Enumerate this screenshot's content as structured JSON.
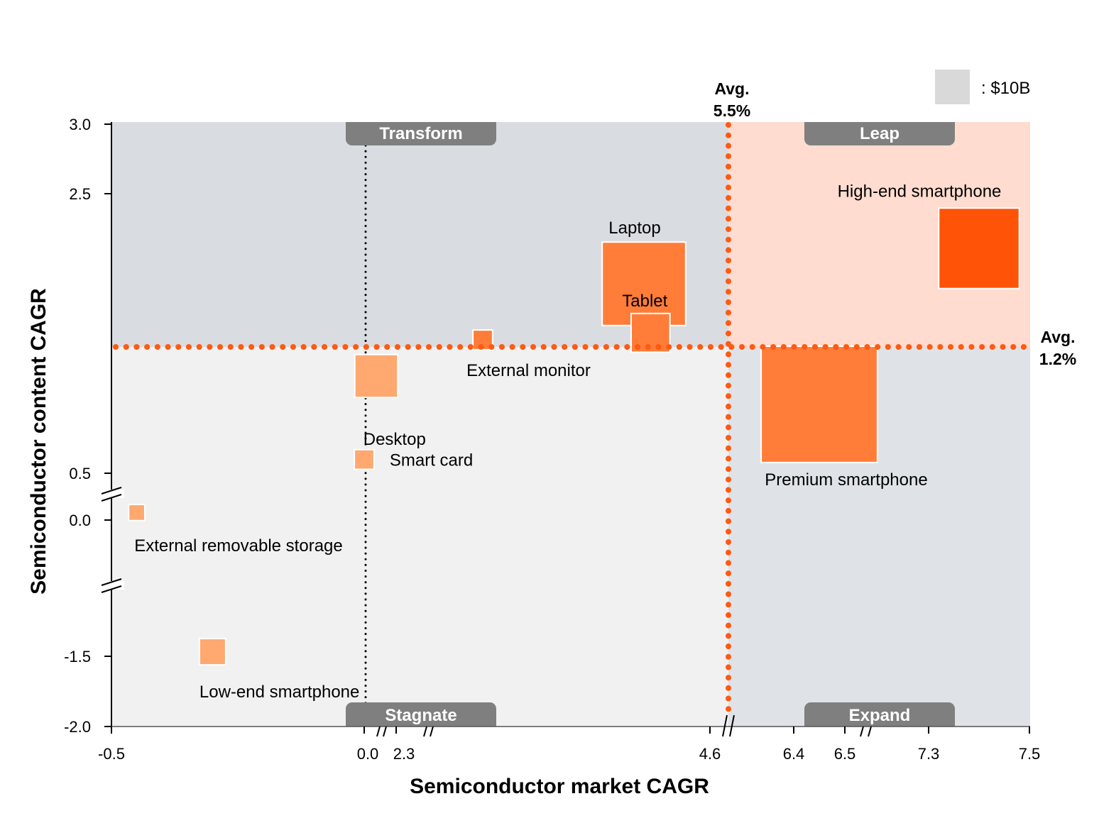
{
  "chart_data": {
    "type": "bubble-matrix",
    "title": "",
    "xlabel": "Semiconductor market CAGR",
    "ylabel": "Semiconductor content CAGR",
    "x_ticks": [
      "-0.5",
      "0.0",
      "2.3",
      "4.6",
      "6.4",
      "6.5",
      "7.3",
      "7.5"
    ],
    "y_ticks": [
      "3.0",
      "2.5",
      "0.5",
      "0.0",
      "-1.5",
      "-2.0"
    ],
    "x_axis_breaks": [
      "between 0.0 and 2.3",
      "after 2.3",
      "after 4.6",
      "between 6.5 and 7.3"
    ],
    "y_axis_breaks": [
      "between 0.5 and 0.0",
      "between 0.0 and -1.5"
    ],
    "averages": {
      "x": {
        "label": "Avg.",
        "value": "5.5%"
      },
      "y": {
        "label": "Avg.",
        "value": "1.2%"
      }
    },
    "quadrants": [
      {
        "name": "Transform",
        "position": "top-left"
      },
      {
        "name": "Leap",
        "position": "top-right"
      },
      {
        "name": "Stagnate",
        "position": "bottom-left"
      },
      {
        "name": "Expand",
        "position": "bottom-right"
      }
    ],
    "legend": {
      "swatch_label": ": $10B",
      "position": "top-right"
    },
    "colors": {
      "top_left_bg": "#d9dce1",
      "top_right_bg": "#ffdccf",
      "bottom_left_bg": "#f1f1f1",
      "bottom_right_bg": "#dfe2e6",
      "avg_line": "#ff5a12",
      "quad_badge": "#7f7f7f",
      "legend_swatch": "#d9d9d9"
    },
    "points": [
      {
        "name": "High-end smartphone",
        "x_display": 7.4,
        "y_display": 1.9,
        "market_size_rel": 1.35,
        "color": "#ff5308"
      },
      {
        "name": "Premium smartphone",
        "x_display": 6.45,
        "y_display": 0.75,
        "market_size_rel": 1.95,
        "color": "#ff7d38"
      },
      {
        "name": "Laptop",
        "x_display": 4.1,
        "y_display": 1.65,
        "market_size_rel": 1.4,
        "color": "#ff7d38"
      },
      {
        "name": "Tablet",
        "x_display": 4.15,
        "y_display": 1.3,
        "market_size_rel": 0.65,
        "color": "#ff7d38"
      },
      {
        "name": "External monitor",
        "x_display": 2.9,
        "y_display": 1.25,
        "market_size_rel": 0.33,
        "color": "#ff7d38"
      },
      {
        "name": "Desktop",
        "x_display": 0.1,
        "y_display": 0.95,
        "market_size_rel": 0.72,
        "color": "#ffa870"
      },
      {
        "name": "Smart card",
        "x_display": 0.0,
        "y_display": 0.55,
        "market_size_rel": 0.33,
        "color": "#ffa870"
      },
      {
        "name": "External removable storage",
        "x_display": -0.45,
        "y_display": 0.08,
        "market_size_rel": 0.27,
        "color": "#ffa870"
      },
      {
        "name": "Low-end smartphone",
        "x_display": -0.3,
        "y_display": -1.45,
        "market_size_rel": 0.44,
        "color": "#ffa870"
      }
    ]
  }
}
